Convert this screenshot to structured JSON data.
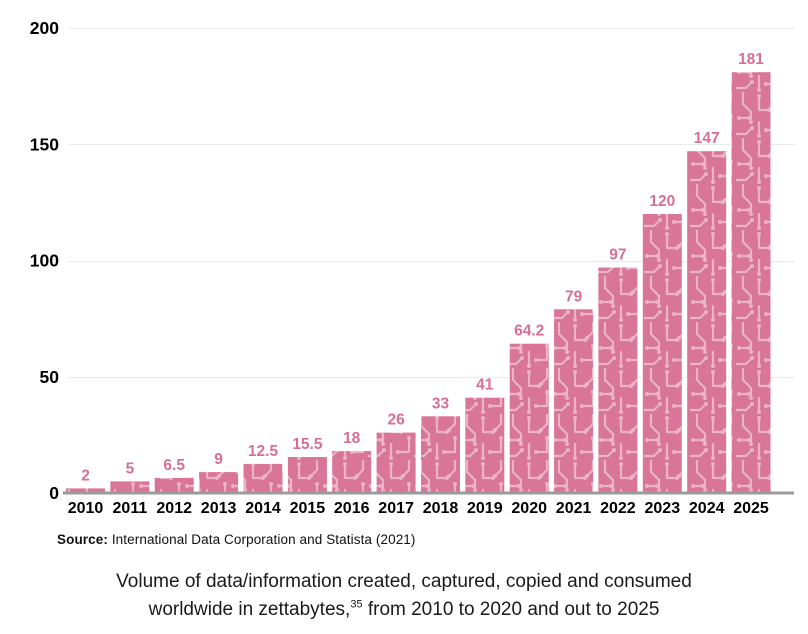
{
  "chart_data": {
    "type": "bar",
    "categories": [
      "2010",
      "2011",
      "2012",
      "2013",
      "2014",
      "2015",
      "2016",
      "2017",
      "2018",
      "2019",
      "2020",
      "2021",
      "2022",
      "2023",
      "2024",
      "2025"
    ],
    "values": [
      2,
      5,
      6.5,
      9,
      12.5,
      15.5,
      18,
      26,
      33,
      41,
      64.2,
      79,
      97,
      120,
      147,
      181
    ],
    "value_labels": [
      "2",
      "5",
      "6.5",
      "9",
      "12.5",
      "15.5",
      "18",
      "26",
      "33",
      "41",
      "64.2",
      "79",
      "97",
      "120",
      "147",
      "181"
    ],
    "title": "",
    "xlabel": "",
    "ylabel": "",
    "ylim": [
      0,
      200
    ],
    "yticks": [
      0,
      50,
      100,
      150,
      200
    ],
    "grid": "horizontal",
    "legend": "none",
    "bar_texture": "circuit-board-pattern",
    "colors": {
      "bar_fill": "#d97596",
      "bar_pattern_trace": "#eab3c6",
      "value_label": "#d76e96",
      "tick_label": "#000000",
      "gridline": "#e8ebee",
      "axis_line": "#9b9b9b"
    }
  },
  "source": {
    "label": "Source:",
    "text": " International Data Corporation and Statista (2021)"
  },
  "caption": {
    "line1": "Volume of data/information created, captured, copied and consumed",
    "line2_before": "worldwide in zettabytes,",
    "footnote_marker": "35",
    "line2_after": " from 2010 to 2020 and out to 2025"
  }
}
